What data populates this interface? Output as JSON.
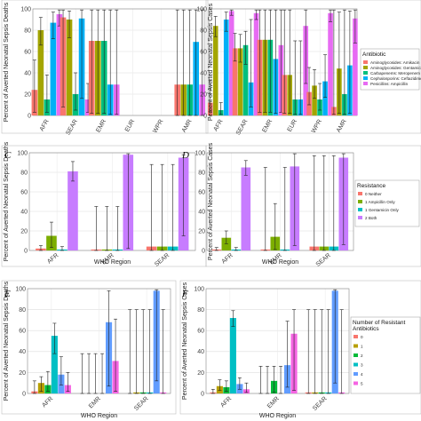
{
  "colors": {
    "antibiotic": [
      "#F8766D",
      "#A3A500",
      "#00BF7D",
      "#00B0F6",
      "#E76BF3"
    ],
    "resistance": [
      "#F8766D",
      "#7CAE00",
      "#00BFC4",
      "#C77CFF"
    ],
    "num_resistant": [
      "#F8766D",
      "#B79F00",
      "#00BA38",
      "#00BFC4",
      "#619CFF",
      "#F564E3"
    ]
  },
  "chart_data": [
    {
      "type": "bar",
      "panel": "",
      "xlabel": "",
      "ylabel": "Percent of Averted Neonatal Sepsis Deaths",
      "ylim": [
        0,
        100
      ],
      "yticks": [
        0,
        20,
        40,
        60,
        80,
        100
      ],
      "grid": true,
      "categories": [
        "AFR",
        "SEAR",
        "EMR",
        "EUR",
        "WPR",
        "AMR"
      ],
      "series": [
        {
          "name": "Aminoglycosides: Amikacin",
          "values": [
            24,
            92,
            70,
            0,
            0,
            29
          ],
          "lower": [
            3,
            8,
            2,
            0,
            0,
            0
          ],
          "upper": [
            52,
            99,
            99,
            0,
            0,
            99
          ]
        },
        {
          "name": "Aminoglycosides: Gentamicin",
          "values": [
            80,
            90,
            70,
            0,
            0,
            29
          ],
          "lower": [
            66,
            73,
            2,
            0,
            0,
            0
          ],
          "upper": [
            92,
            98,
            99,
            0,
            0,
            99
          ]
        },
        {
          "name": "Carbapenems: Meropenem",
          "values": [
            15,
            20,
            70,
            0,
            0,
            29
          ],
          "lower": [
            3,
            5,
            2,
            0,
            0,
            0
          ],
          "upper": [
            38,
            40,
            99,
            0,
            0,
            99
          ]
        },
        {
          "name": "Cephalosporins: Ceftazidime",
          "values": [
            87,
            91,
            29,
            0,
            0,
            69
          ],
          "lower": [
            72,
            16,
            1,
            0,
            0,
            0
          ],
          "upper": [
            97,
            99,
            99,
            0,
            0,
            99
          ]
        },
        {
          "name": "Penicillins: Ampicillin",
          "values": [
            95,
            15,
            29,
            0,
            0,
            29
          ],
          "lower": [
            84,
            3,
            1,
            0,
            0,
            0
          ],
          "upper": [
            99,
            30,
            99,
            0,
            0,
            99
          ]
        }
      ]
    },
    {
      "type": "bar",
      "panel": "",
      "xlabel": "",
      "ylabel": "Percent of Averted Neonatal Sepsis Cases",
      "ylim": [
        0,
        100
      ],
      "yticks": [
        0,
        20,
        40,
        60,
        80,
        100
      ],
      "grid": true,
      "legend_title": "Antibiotic",
      "legend_position": "right",
      "categories": [
        "AFR",
        "SEAR",
        "EMR",
        "EUR",
        "WPR",
        "AMR"
      ],
      "series": [
        {
          "name": "Aminoglycosides: Amikacin",
          "values": [
            12,
            63,
            71,
            38,
            22,
            8
          ],
          "lower": [
            4,
            51,
            3,
            2,
            10,
            1
          ],
          "upper": [
            33,
            77,
            99,
            99,
            45,
            99
          ]
        },
        {
          "name": "Aminoglycosides: Gentamicin",
          "values": [
            84,
            63,
            71,
            38,
            28,
            44
          ],
          "lower": [
            74,
            50,
            3,
            2,
            16,
            2
          ],
          "upper": [
            93,
            76,
            99,
            99,
            43,
            97
          ]
        },
        {
          "name": "Carbapenems: Meropenem",
          "values": [
            5,
            66,
            71,
            15,
            15,
            20
          ],
          "lower": [
            1,
            48,
            3,
            1,
            5,
            1
          ],
          "upper": [
            12,
            79,
            99,
            70,
            30,
            99
          ]
        },
        {
          "name": "Cephalosporins: Ceftazidime",
          "values": [
            90,
            31,
            53,
            15,
            32,
            47
          ],
          "lower": [
            79,
            8,
            2,
            1,
            17,
            2
          ],
          "upper": [
            97,
            90,
            99,
            70,
            57,
            98
          ]
        },
        {
          "name": "Penicillins: Ampicillin",
          "values": [
            98,
            96,
            66,
            84,
            96,
            91
          ],
          "lower": [
            94,
            90,
            3,
            30,
            88,
            68
          ],
          "upper": [
            99,
            99,
            99,
            99,
            99,
            99
          ]
        }
      ]
    },
    {
      "type": "bar",
      "panel": "C",
      "xlabel": "WHO Region",
      "ylabel": "Percent of Averted Neonatal Sepsis Deaths",
      "ylim": [
        0,
        100
      ],
      "yticks": [
        0,
        20,
        40,
        60,
        80,
        100
      ],
      "grid": true,
      "categories": [
        "AFR",
        "EMR",
        "SEAR"
      ],
      "series": [
        {
          "name": "0 Neither",
          "values": [
            2,
            1,
            4
          ],
          "lower": [
            0,
            0,
            0
          ],
          "upper": [
            5,
            45,
            88
          ]
        },
        {
          "name": "1 Ampicillin Only",
          "values": [
            15,
            1,
            4
          ],
          "lower": [
            3,
            0,
            0
          ],
          "upper": [
            29,
            45,
            88
          ]
        },
        {
          "name": "1 Gentamicin Only",
          "values": [
            1,
            1,
            4
          ],
          "lower": [
            0,
            0,
            0
          ],
          "upper": [
            4,
            45,
            88
          ]
        },
        {
          "name": "2 Both",
          "values": [
            81,
            98,
            95
          ],
          "lower": [
            71,
            2,
            15
          ],
          "upper": [
            91,
            99,
            98
          ]
        }
      ]
    },
    {
      "type": "bar",
      "panel": "D",
      "xlabel": "WHO Region",
      "ylabel": "Percent of Averted Neonatal Sepsis Cases",
      "ylim": [
        0,
        100
      ],
      "yticks": [
        0,
        20,
        40,
        60,
        80,
        100
      ],
      "grid": true,
      "legend_title": "Resistance",
      "legend_position": "right",
      "categories": [
        "AFR",
        "EMR",
        "SEAR"
      ],
      "series": [
        {
          "name": "0 Neither",
          "values": [
            1,
            1,
            4
          ],
          "lower": [
            0,
            0,
            0
          ],
          "upper": [
            3,
            85,
            97
          ]
        },
        {
          "name": "1 Ampicillin Only",
          "values": [
            13,
            14,
            4
          ],
          "lower": [
            7,
            1,
            0
          ],
          "upper": [
            20,
            48,
            97
          ]
        },
        {
          "name": "1 Gentamicin Only",
          "values": [
            1,
            1,
            4
          ],
          "lower": [
            0,
            0,
            0
          ],
          "upper": [
            3,
            85,
            97
          ]
        },
        {
          "name": "2 Both",
          "values": [
            85,
            86,
            95
          ],
          "lower": [
            77,
            5,
            6
          ],
          "upper": [
            92,
            99,
            99
          ]
        }
      ]
    },
    {
      "type": "bar",
      "panel": "E",
      "xlabel": "WHO Region",
      "ylabel": "Percent of Averted Neonatal Sepsis Deaths",
      "ylim": [
        0,
        100
      ],
      "yticks": [
        0,
        20,
        40,
        60,
        80,
        100
      ],
      "grid": true,
      "categories": [
        "AFR",
        "EMR",
        "SEAR"
      ],
      "series": [
        {
          "name": "0",
          "values": [
            2,
            0,
            0
          ],
          "lower": [
            0,
            0,
            0
          ],
          "upper": [
            12,
            38,
            80
          ]
        },
        {
          "name": "1",
          "values": [
            10,
            0,
            1
          ],
          "lower": [
            2,
            0,
            0
          ],
          "upper": [
            16,
            38,
            80
          ]
        },
        {
          "name": "2",
          "values": [
            8,
            0,
            1
          ],
          "lower": [
            2,
            0,
            0
          ],
          "upper": [
            21,
            38,
            80
          ]
        },
        {
          "name": "3",
          "values": [
            55,
            0,
            1
          ],
          "lower": [
            38,
            0,
            0
          ],
          "upper": [
            67,
            38,
            80
          ]
        },
        {
          "name": "4",
          "values": [
            18,
            68,
            98
          ],
          "lower": [
            8,
            7,
            12
          ],
          "upper": [
            35,
            98,
            99
          ]
        },
        {
          "name": "5",
          "values": [
            8,
            31,
            1
          ],
          "lower": [
            2,
            2,
            0
          ],
          "upper": [
            20,
            71,
            80
          ]
        }
      ]
    },
    {
      "type": "bar",
      "panel": "F",
      "xlabel": "WHO Region",
      "ylabel": "Percent of Averted Neonatal Sepsis Cases",
      "ylim": [
        0,
        100
      ],
      "yticks": [
        0,
        20,
        40,
        60,
        80,
        100
      ],
      "grid": true,
      "legend_title": "Number of Resistant Antibiotics",
      "legend_position": "right",
      "categories": [
        "AFR",
        "EMR",
        "SEAR"
      ],
      "series": [
        {
          "name": "0",
          "values": [
            1,
            0,
            1
          ],
          "lower": [
            0,
            0,
            0
          ],
          "upper": [
            4,
            26,
            80
          ]
        },
        {
          "name": "1",
          "values": [
            7,
            0,
            1
          ],
          "lower": [
            3,
            0,
            0
          ],
          "upper": [
            13,
            26,
            80
          ]
        },
        {
          "name": "2",
          "values": [
            6,
            12,
            1
          ],
          "lower": [
            2,
            1,
            0
          ],
          "upper": [
            12,
            26,
            80
          ]
        },
        {
          "name": "3",
          "values": [
            72,
            0,
            1
          ],
          "lower": [
            64,
            0,
            0
          ],
          "upper": [
            79,
            26,
            80
          ]
        },
        {
          "name": "4",
          "values": [
            9,
            27,
            98
          ],
          "lower": [
            4,
            6,
            10
          ],
          "upper": [
            15,
            69,
            99
          ]
        },
        {
          "name": "5",
          "values": [
            4,
            57,
            1
          ],
          "lower": [
            1,
            3,
            0
          ],
          "upper": [
            10,
            80,
            80
          ]
        }
      ]
    }
  ]
}
